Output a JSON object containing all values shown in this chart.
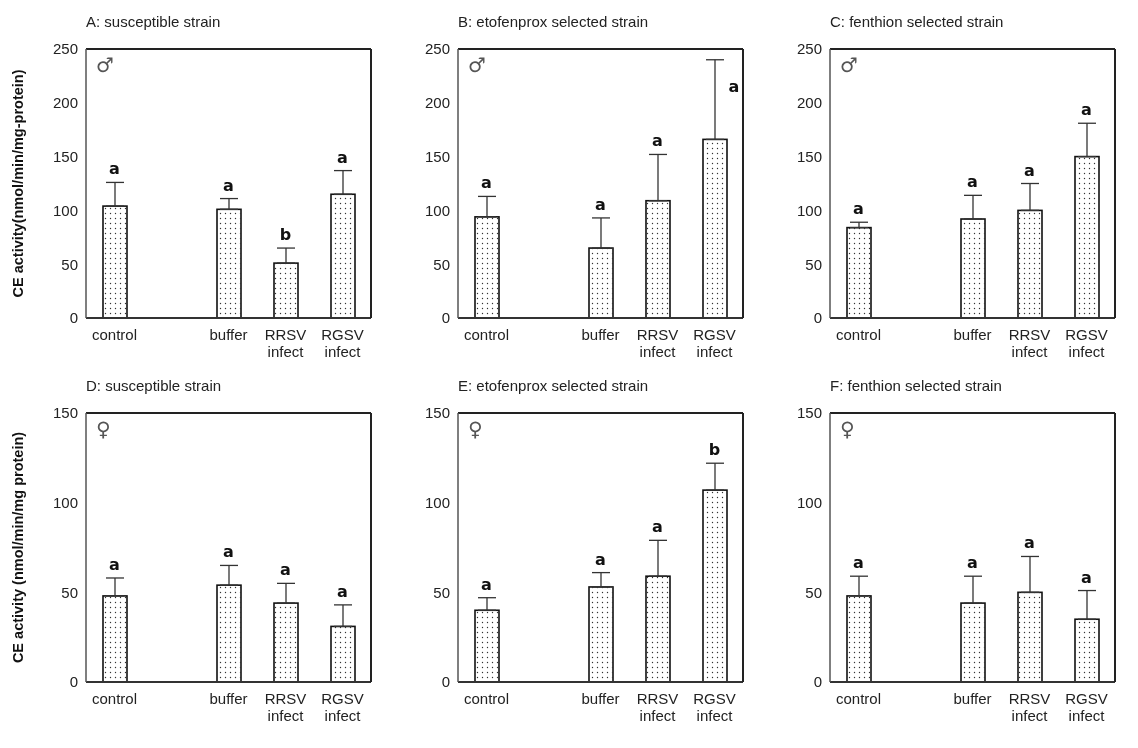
{
  "chart_data": [
    {
      "type": "bar",
      "title": "A: susceptible strain",
      "ylabel": "CE activity(nmol/min/mg-protein)",
      "categories": [
        "control",
        null,
        "buffer",
        "RRSV infect",
        "RGSV infect"
      ],
      "values": [
        104,
        null,
        101,
        51,
        115
      ],
      "errors": [
        22,
        null,
        10,
        14,
        22
      ],
      "color": "#ffffff",
      "ylim": [
        0,
        250
      ],
      "yticks": [
        0,
        50,
        100,
        150,
        200,
        250
      ],
      "grid": false,
      "legend": false,
      "annotations": [
        "♂",
        {
          "text": "a",
          "x": "control",
          "y": 126
        },
        {
          "text": "a",
          "x": "buffer",
          "y": 111
        },
        {
          "text": "b",
          "x": "RRSV infect",
          "y": 65
        },
        {
          "text": "a",
          "x": "RGSV infect",
          "y": 137
        }
      ]
    },
    {
      "type": "bar",
      "title": "B: etofenprox selected strain",
      "categories": [
        "control",
        null,
        "buffer",
        "RRSV infect",
        "RGSV infect"
      ],
      "values": [
        94,
        null,
        65,
        109,
        166
      ],
      "errors": [
        19,
        null,
        28,
        43,
        74
      ],
      "color": "#ffffff",
      "ylim": [
        0,
        250
      ],
      "yticks": [
        0,
        50,
        100,
        150,
        200,
        250
      ],
      "grid": false,
      "legend": false,
      "annotations": [
        "♂",
        {
          "text": "a",
          "x": "control",
          "y": 113
        },
        {
          "text": "a",
          "x": "buffer",
          "y": 93
        },
        {
          "text": "a",
          "x": "RRSV infect",
          "y": 152
        },
        {
          "text": "a",
          "x": "RGSV infect",
          "y": 240
        }
      ]
    },
    {
      "type": "bar",
      "title": "C: fenthion selected strain",
      "categories": [
        "control",
        null,
        "buffer",
        "RRSV infect",
        "RGSV infect"
      ],
      "values": [
        84,
        null,
        92,
        100,
        150
      ],
      "errors": [
        5,
        null,
        22,
        25,
        31
      ],
      "color": "#ffffff",
      "ylim": [
        0,
        250
      ],
      "yticks": [
        0,
        50,
        100,
        150,
        200,
        250
      ],
      "grid": false,
      "legend": false,
      "annotations": [
        "♂",
        {
          "text": "a",
          "x": "control",
          "y": 89
        },
        {
          "text": "a",
          "x": "buffer",
          "y": 114
        },
        {
          "text": "a",
          "x": "RRSV infect",
          "y": 125
        },
        {
          "text": "a",
          "x": "RGSV infect",
          "y": 181
        }
      ]
    },
    {
      "type": "bar",
      "title": "D: susceptible strain",
      "ylabel": "CE activity (nmol/min/mg protein)",
      "categories": [
        "control",
        null,
        "buffer",
        "RRSV infect",
        "RGSV infect"
      ],
      "values": [
        48,
        null,
        54,
        44,
        31
      ],
      "errors": [
        10,
        null,
        11,
        11,
        12
      ],
      "color": "#ffffff",
      "ylim": [
        0,
        150
      ],
      "yticks": [
        0,
        50,
        100,
        150
      ],
      "grid": false,
      "legend": false,
      "annotations": [
        "♀",
        {
          "text": "a",
          "x": "control",
          "y": 58
        },
        {
          "text": "a",
          "x": "buffer",
          "y": 65
        },
        {
          "text": "a",
          "x": "RRSV infect",
          "y": 55
        },
        {
          "text": "a",
          "x": "RGSV infect",
          "y": 43
        }
      ]
    },
    {
      "type": "bar",
      "title": "E: etofenprox selected strain",
      "categories": [
        "control",
        null,
        "buffer",
        "RRSV infect",
        "RGSV infect"
      ],
      "values": [
        40,
        null,
        53,
        59,
        107
      ],
      "errors": [
        7,
        null,
        8,
        20,
        15
      ],
      "color": "#ffffff",
      "ylim": [
        0,
        150
      ],
      "yticks": [
        0,
        50,
        100,
        150
      ],
      "grid": false,
      "legend": false,
      "annotations": [
        "♀",
        {
          "text": "a",
          "x": "control",
          "y": 47
        },
        {
          "text": "a",
          "x": "buffer",
          "y": 61
        },
        {
          "text": "a",
          "x": "RRSV infect",
          "y": 79
        },
        {
          "text": "b",
          "x": "RGSV infect",
          "y": 122
        }
      ]
    },
    {
      "type": "bar",
      "title": "F: fenthion selected strain",
      "categories": [
        "control",
        null,
        "buffer",
        "RRSV infect",
        "RGSV infect"
      ],
      "values": [
        48,
        null,
        44,
        50,
        35
      ],
      "errors": [
        11,
        null,
        15,
        20,
        16
      ],
      "color": "#ffffff",
      "ylim": [
        0,
        150
      ],
      "yticks": [
        0,
        50,
        100,
        150
      ],
      "grid": false,
      "legend": false,
      "annotations": [
        "♀",
        {
          "text": "a",
          "x": "control",
          "y": 59
        },
        {
          "text": "a",
          "x": "buffer",
          "y": 59
        },
        {
          "text": "a",
          "x": "RRSV infect",
          "y": 70
        },
        {
          "text": "a",
          "x": "RGSV infect",
          "y": 51
        }
      ]
    }
  ]
}
